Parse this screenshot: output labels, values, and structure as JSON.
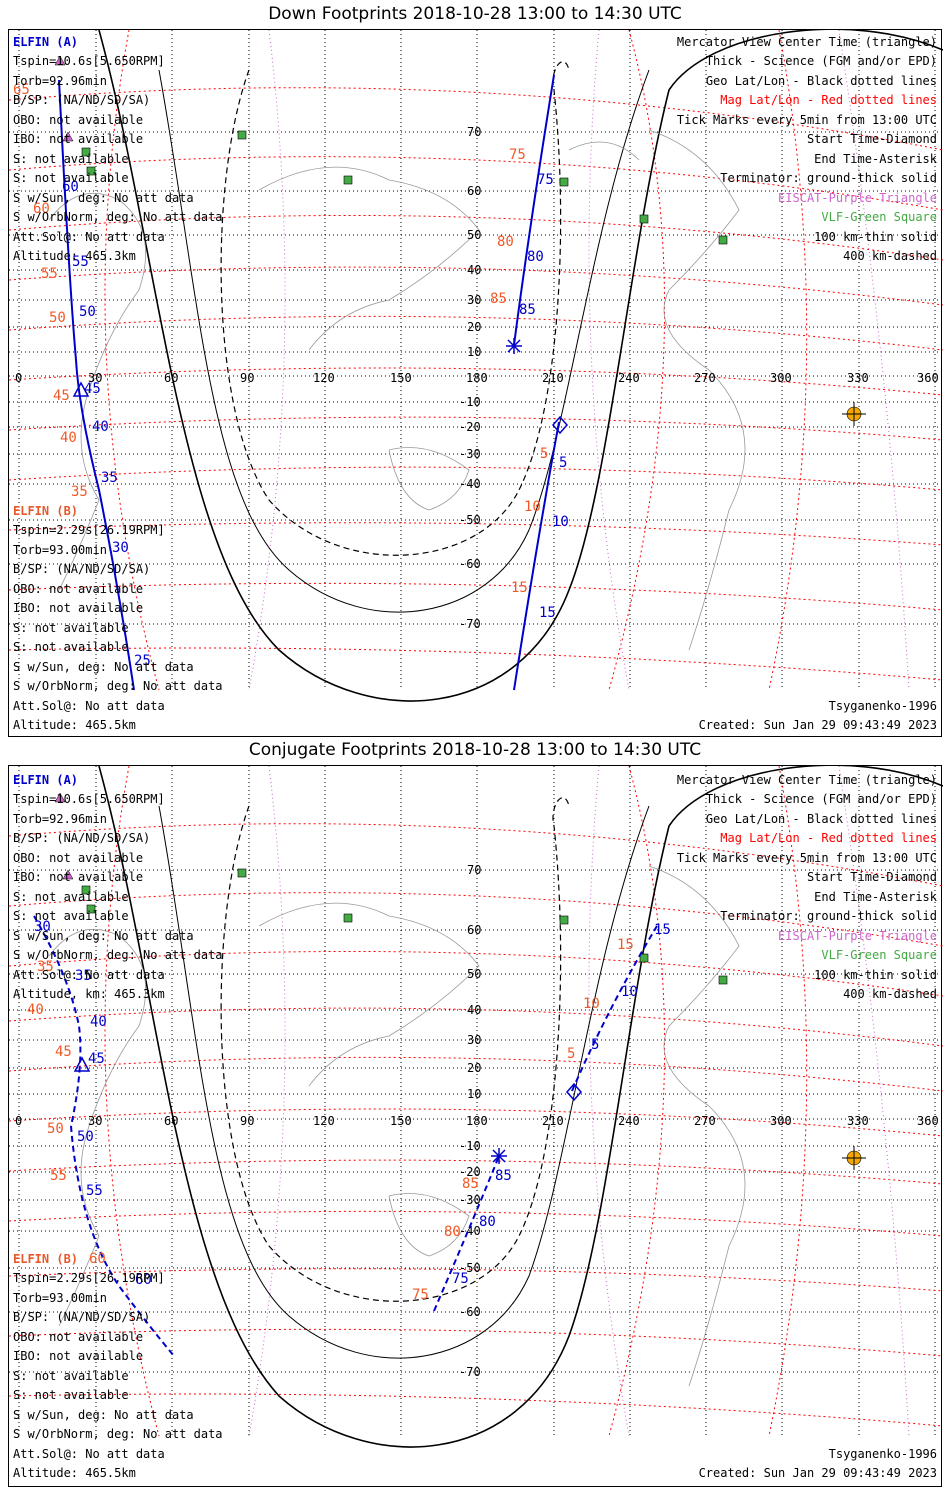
{
  "colors": {
    "elfin_a": "#0000cc",
    "elfin_b": "#e8582a",
    "mag": "#ff0000",
    "geo": "#000000",
    "eiscat": "#cc66cc",
    "vlf": "#44aa44",
    "sun": "#f5a800",
    "footprint": "#0000ff",
    "tick_red": "#f05a28"
  },
  "maps": [
    {
      "title": "Down Footprints 2018-10-28 13:00 to 14:30 UTC",
      "left_a": {
        "header": "ELFIN (A)",
        "lines": [
          "Tspin=10.6s[5.650RPM]",
          "Torb=92.96min",
          "B/SP: (NA/ND/SD/SA)",
          "OBO: not available",
          "IBO: not available",
          "S: not available",
          "S: not available",
          "S w/Sun, deg: No att data",
          "S w/OrbNorm, deg: No att data",
          "Att.Sol@: No att data",
          "Altitude: 465.3km"
        ]
      },
      "left_b": {
        "header": "ELFIN (B)",
        "lines": [
          "Tspin=2.29s[26.19RPM]",
          "Torb=93.00min",
          "B/SP: (NA/ND/SD/SA)",
          "OBO: not available",
          "IBO: not available",
          "S: not available",
          "S: not available",
          "S w/Sun, deg: No att data",
          "S w/OrbNorm, deg: No att data",
          "Att.Sol@: No att data",
          "Altitude: 465.5km"
        ]
      },
      "right_lines": [
        {
          "text": "Mercator View Center Time (triangle)",
          "color": "geo"
        },
        {
          "text": "Thick - Science (FGM and/or EPD)",
          "color": "geo"
        },
        {
          "text": "Geo Lat/Lon - Black dotted lines",
          "color": "geo"
        },
        {
          "text": "Mag Lat/Lon - Red dotted lines",
          "color": "mag"
        },
        {
          "text": "Tick Marks every 5min from 13:00 UTC",
          "color": "geo"
        },
        {
          "text": "Start Time-Diamond",
          "color": "geo"
        },
        {
          "text": "End Time-Asterisk",
          "color": "geo"
        },
        {
          "text": "Terminator: ground-thick solid",
          "color": "geo"
        },
        {
          "text": "EISCAT-Purple Triangle",
          "color": "eiscat"
        },
        {
          "text": "VLF-Green Square",
          "color": "vlf"
        },
        {
          "text": "100 km-thin solid",
          "color": "geo"
        },
        {
          "text": "400 km-dashed",
          "color": "geo"
        }
      ],
      "model": "Tsyganenko-1996",
      "created": "Created: Sun Jan 29 09:43:49 2023"
    },
    {
      "title": "Conjugate Footprints 2018-10-28 13:00 to 14:30 UTC",
      "left_a": {
        "header": "ELFIN (A)",
        "lines": [
          "Tspin=10.6s[5.650RPM]",
          "Torb=92.96min",
          "B/SP: (NA/ND/SD/SA)",
          "OBO: not available",
          "IBO: not available",
          "S: not available",
          "S: not available",
          "S w/Sun, deg: No att data",
          "S w/OrbNorm, deg: No att data",
          "Att.Sol@: No att data",
          "Altitude, km: 465.3km"
        ]
      },
      "left_b": {
        "header": "ELFIN (B)",
        "lines": [
          "Tspin=2.29s[26.19RPM]",
          "Torb=93.00min",
          "B/SP: (NA/ND/SD/SA)",
          "OBO: not available",
          "IBO: not available",
          "S: not available",
          "S: not available",
          "S w/Sun, deg: No att data",
          "S w/OrbNorm, deg: No att data",
          "Att.Sol@: No att data",
          "Altitude: 465.5km"
        ]
      },
      "right_lines": [
        {
          "text": "Mercator View Center Time (triangle)",
          "color": "geo"
        },
        {
          "text": "Thick - Science (FGM and/or EPD)",
          "color": "geo"
        },
        {
          "text": "Geo Lat/Lon - Black dotted lines",
          "color": "geo"
        },
        {
          "text": "Mag Lat/Lon - Red dotted lines",
          "color": "mag"
        },
        {
          "text": "Tick Marks every 5min from 13:00 UTC",
          "color": "geo"
        },
        {
          "text": "Start Time-Diamond",
          "color": "geo"
        },
        {
          "text": "End Time-Asterisk",
          "color": "geo"
        },
        {
          "text": "Terminator: ground-thick solid",
          "color": "geo"
        },
        {
          "text": "EISCAT-Purple Triangle",
          "color": "eiscat"
        },
        {
          "text": "VLF-Green Square",
          "color": "vlf"
        },
        {
          "text": "100 km-thin solid",
          "color": "geo"
        },
        {
          "text": "400 km-dashed",
          "color": "geo"
        }
      ],
      "model": "Tsyganenko-1996",
      "created": "Created: Sun Jan 29 09:43:49 2023"
    }
  ],
  "lon_labels": [
    "0",
    "30",
    "60",
    "90",
    "120",
    "150",
    "180",
    "210",
    "240",
    "270",
    "300",
    "330",
    "360"
  ],
  "lat_labels": [
    "70",
    "60",
    "50",
    "40",
    "30",
    "20",
    "10",
    "-10",
    "-20",
    "-30",
    "-40",
    "-50",
    "-60",
    "-70"
  ],
  "ticks": {
    "map1_a_blue": [
      "25",
      "30",
      "35",
      "40",
      "45",
      "50",
      "55",
      "60"
    ],
    "map1_a_red": [
      "35",
      "40",
      "45",
      "50",
      "55",
      "60",
      "65"
    ],
    "map1_b_blue": [
      "5",
      "10",
      "15",
      "75",
      "80",
      "85"
    ],
    "map1_b_red": [
      "5",
      "10",
      "15",
      "75",
      "80",
      "85"
    ],
    "map2_a_blue": [
      "30",
      "35",
      "40",
      "45",
      "50",
      "55",
      "60"
    ],
    "map2_a_red": [
      "35",
      "40",
      "45",
      "50",
      "55",
      "60"
    ],
    "map2_b_blue": [
      "5",
      "10",
      "15",
      "75",
      "80",
      "85"
    ],
    "map2_b_red": [
      "5",
      "10",
      "15",
      "75",
      "80",
      "85"
    ]
  }
}
